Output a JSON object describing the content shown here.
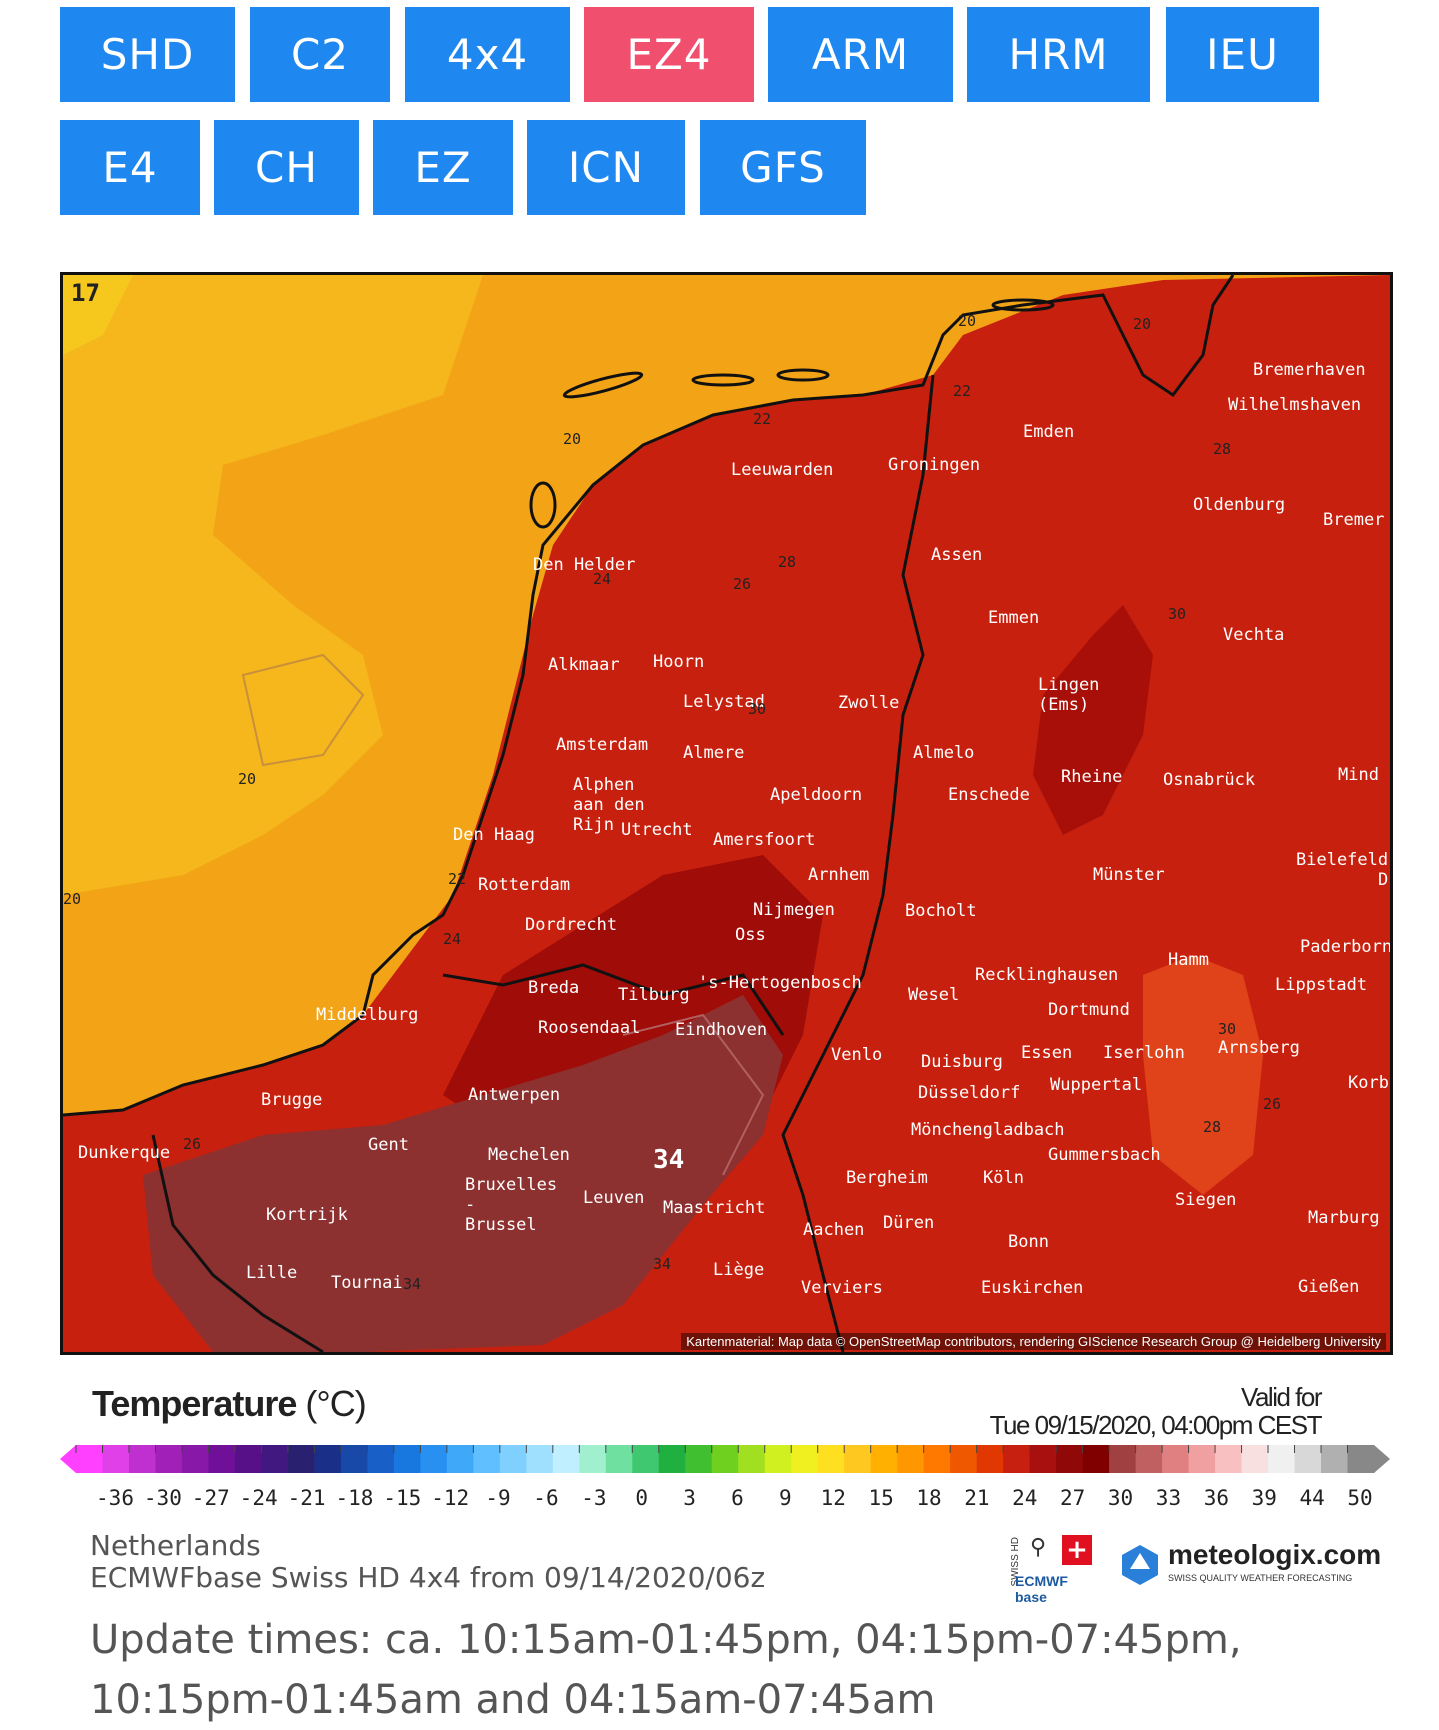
{
  "nav": {
    "models": [
      {
        "label": "SHD",
        "active": false
      },
      {
        "label": "C2",
        "active": false
      },
      {
        "label": "4x4",
        "active": false
      },
      {
        "label": "EZ4",
        "active": true
      },
      {
        "label": "ARM",
        "active": false
      },
      {
        "label": "HRM",
        "active": false
      },
      {
        "label": "IEU",
        "active": false
      },
      {
        "label": "E4",
        "active": false
      },
      {
        "label": "CH",
        "active": false
      },
      {
        "label": "EZ",
        "active": false
      },
      {
        "label": "ICN",
        "active": false
      },
      {
        "label": "GFS",
        "active": false
      }
    ],
    "active_color": "#f0506e",
    "button_color": "#1e87f0"
  },
  "map": {
    "corner_label": "17",
    "attribution": "Kartenmaterial: Map data © OpenStreetMap contributors, rendering GIScience Research Group @ Heidelberg University",
    "cities": [
      "Bremerhaven",
      "Wilhelmshaven",
      "Emden",
      "Groningen",
      "Leeuwarden",
      "Oldenburg",
      "Bremer",
      "Den Helder",
      "Assen",
      "Emmen",
      "Vechta",
      "Alkmaar",
      "Hoorn",
      "Lelystad",
      "Zwolle",
      "Lingen (Ems)",
      "Amsterdam",
      "Almere",
      "Almelo",
      "Rheine",
      "Osnabrück",
      "Mind",
      "Alphen aan den Rijn",
      "Apeldoorn",
      "Enschede",
      "Den Haag",
      "Utrecht",
      "Amersfoort",
      "Bielefeld",
      "Arnhem",
      "Münster",
      "Rotterdam",
      "Nijmegen",
      "Bocholt",
      "D",
      "Dordrecht",
      "Oss",
      "Hamm",
      "Paderborn",
      "Recklinghausen",
      "Breda",
      "Tilburg",
      "'s-Hertogenbosch",
      "Wesel",
      "Lippstadt",
      "Middelburg",
      "Dortmund",
      "Roosendaal",
      "Eindhoven",
      "Venlo",
      "Duisburg",
      "Essen",
      "Iserlohn",
      "Arnsberg",
      "Brugge",
      "Antwerpen",
      "Düsseldorf",
      "Wuppertal",
      "Korbac",
      "Mönchengladbach",
      "Gent",
      "Dunkerque",
      "Mechelen",
      "Gummersbach",
      "Bergheim",
      "Köln",
      "Bruxelles - Brussel",
      "Leuven",
      "Maastricht",
      "Siegen",
      "Kortrijk",
      "Marburg",
      "Aachen",
      "Düren",
      "Bonn",
      "Lille",
      "Liège",
      "Tournai",
      "Verviers",
      "Euskirchen",
      "Gießen"
    ],
    "isotherms": [
      "20",
      "20",
      "20",
      "20",
      "20",
      "22",
      "22",
      "22",
      "24",
      "24",
      "26",
      "26",
      "26",
      "28",
      "28",
      "28",
      "30",
      "30",
      "30",
      "34",
      "34",
      "34"
    ],
    "max_value": "34"
  },
  "legend": {
    "title": "Temperature",
    "unit": "(°C)",
    "valid_label": "Valid for",
    "valid_time": "Tue 09/15/2020, 04:00pm CEST",
    "ticks": [
      "-36",
      "-30",
      "-27",
      "-24",
      "-21",
      "-18",
      "-15",
      "-12",
      "-9",
      "-6",
      "-3",
      "0",
      "3",
      "6",
      "9",
      "12",
      "15",
      "18",
      "21",
      "24",
      "27",
      "30",
      "33",
      "36",
      "39",
      "44",
      "50"
    ],
    "colors": [
      "#ff40ff",
      "#e040e8",
      "#c030d0",
      "#a020b8",
      "#8818a8",
      "#701098",
      "#581088",
      "#401880",
      "#2a2070",
      "#1a3088",
      "#1848a8",
      "#1860c8",
      "#1878e0",
      "#2890f0",
      "#40a8f8",
      "#60c0ff",
      "#80d0ff",
      "#a0e0ff",
      "#c0f0ff",
      "#a0f0d0",
      "#70e0a0",
      "#40c870",
      "#20b040",
      "#40c030",
      "#70d020",
      "#a0e020",
      "#d0f020",
      "#f0f020",
      "#ffe020",
      "#ffc820",
      "#ffb000",
      "#ff9800",
      "#ff7800",
      "#f05800",
      "#e03800",
      "#c82010",
      "#a81010",
      "#900808",
      "#800000",
      "#a04040",
      "#c06060",
      "#e08080",
      "#f0a0a0",
      "#f8c0c0",
      "#f8e0e0",
      "#f0f0f0",
      "#d8d8d8",
      "#b0b0b0",
      "#888888"
    ]
  },
  "meta": {
    "region": "Netherlands",
    "model_run": "ECMWFbase Swiss HD 4x4 from 09/14/2020/06z"
  },
  "logos": {
    "swiss_hd": "SWISS HD",
    "ecmwf": "ECMWF base",
    "brand": "meteologix.com",
    "tagline": "SWISS QUALITY WEATHER FORECASTING"
  },
  "update_text": "Update times: ca. 10:15am-01:45pm, 04:15pm-07:45pm, 10:15pm-01:45am and 04:15am-07:45am"
}
